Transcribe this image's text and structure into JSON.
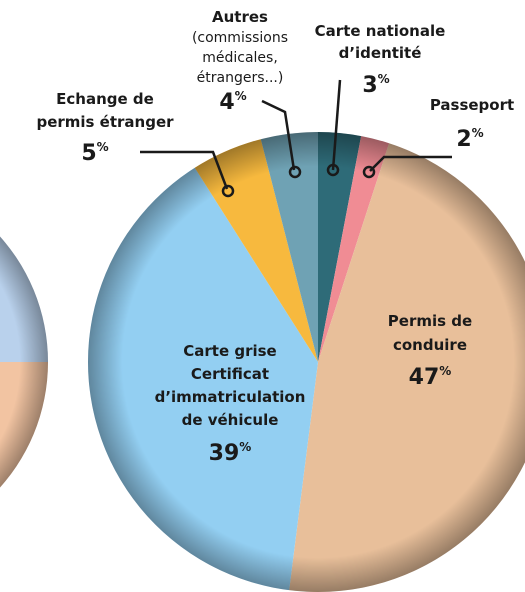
{
  "chart_data": {
    "type": "pie",
    "categories": [
      "Carte nationale\nd’identité",
      "Passeport",
      "Permis de\nconduire",
      "Carte grise\nCertificat\nd’immatriculation\nde véhicule",
      "Echange de\npermis étranger",
      "Autres\n(commissions\nmédicales,\nétrangers...)"
    ],
    "values": [
      3,
      2,
      47,
      39,
      5,
      4
    ],
    "unit": "%",
    "colors": [
      "#2e6b78",
      "#f08c94",
      "#e8bf9a",
      "#93cff2",
      "#f7b93e",
      "#6fa2b4"
    ]
  }
}
